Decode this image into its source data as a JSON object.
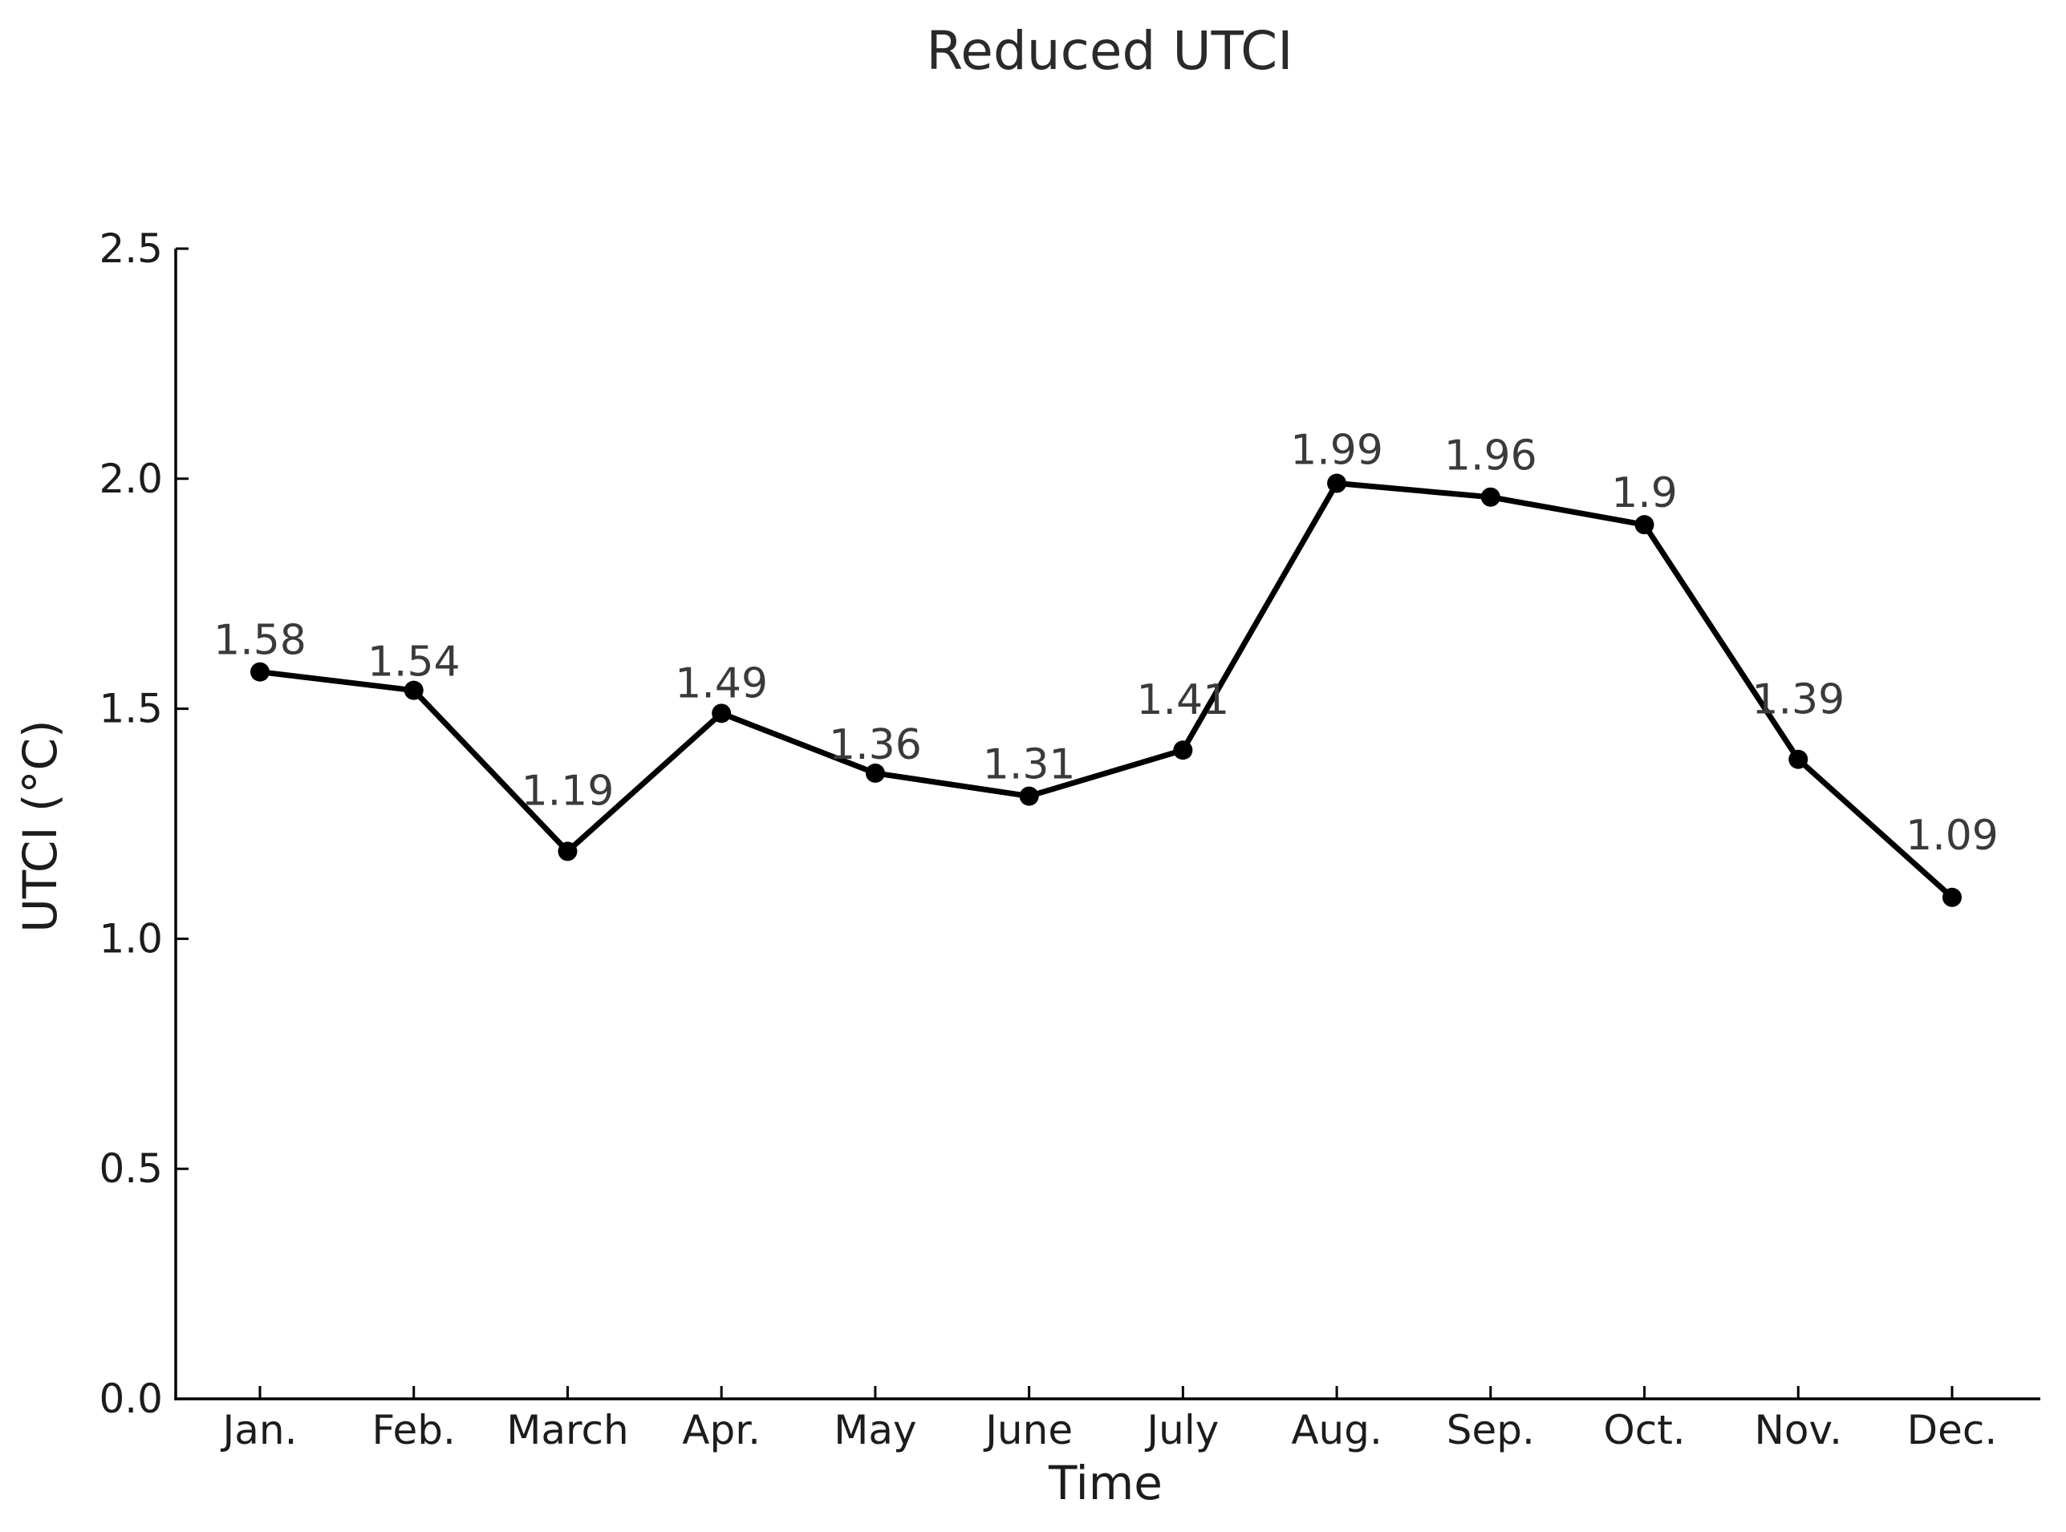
{
  "figure": {
    "background_color": "#ffffff"
  },
  "chart_data": {
    "type": "line",
    "title": "Reduced UTCI",
    "xlabel": "Time",
    "ylabel": "UTCI (°C)",
    "categories": [
      "Jan.",
      "Feb.",
      "March",
      "Apr.",
      "May",
      "June",
      "July",
      "Aug.",
      "Sep.",
      "Oct.",
      "Nov.",
      "Dec."
    ],
    "values": [
      1.58,
      1.54,
      1.19,
      1.49,
      1.36,
      1.31,
      1.41,
      1.99,
      1.96,
      1.9,
      1.39,
      1.09
    ],
    "point_labels": [
      "1.58",
      "1.54",
      "1.19",
      "1.49",
      "1.36",
      "1.31",
      "1.41",
      "1.99",
      "1.96",
      "1.9",
      "1.39",
      "1.09"
    ],
    "ylim": [
      0.0,
      2.5
    ],
    "ytick_values": [
      0.0,
      0.5,
      1.0,
      1.5,
      2.0,
      2.5
    ],
    "ytick_labels": [
      "0.0",
      "0.5",
      "1.0",
      "1.5",
      "2.0",
      "2.5"
    ],
    "grid": false,
    "legend": null,
    "line_color": "#000000",
    "marker": "circle",
    "marker_color": "#000000",
    "axis_color": "#000000",
    "tick_label_color": "#1c1c1c",
    "point_label_color": "#3a3a3a",
    "title_color": "#2a2a2a"
  }
}
